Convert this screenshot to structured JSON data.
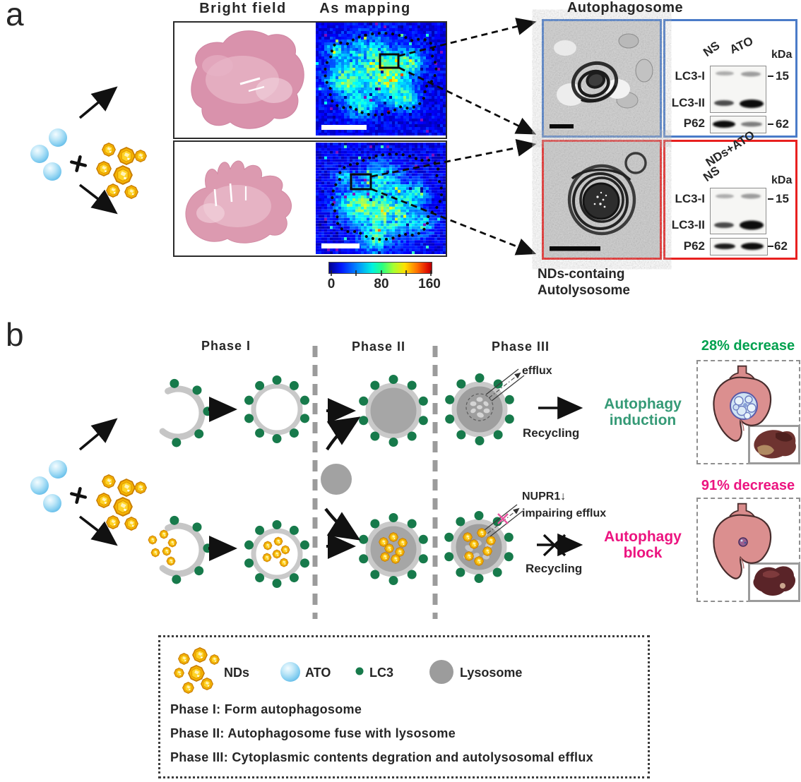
{
  "panel_a": {
    "label": "a",
    "headers": {
      "bright_field": "Bright field",
      "as_mapping": "As mapping"
    },
    "colorbar": {
      "tick0": "0",
      "tick80": "80",
      "tick160": "160"
    },
    "autophagosome_title": "Autophagosome",
    "blot_top": {
      "lane1": "NS",
      "lane2": "ATO",
      "unit": "kDa",
      "row1": "LC3-I",
      "row2": "LC3-II",
      "row3": "P62",
      "marker1": "15",
      "marker2": "62"
    },
    "blot_bottom": {
      "lane1": "NS",
      "lane2": "NDs+ATO",
      "unit": "kDa",
      "row1": "LC3-I",
      "row2": "LC3-II",
      "row3": "P62",
      "marker1": "15",
      "marker2": "62"
    },
    "caption": {
      "line1": "NDs-containg",
      "line2": "Autolysosome"
    }
  },
  "panel_b": {
    "label": "b",
    "phase1": "Phase I",
    "phase2": "Phase II",
    "phase3": "Phase III",
    "top_row": {
      "efflux_label": "efflux",
      "recycling_label": "Recycling",
      "outcome_line1": "Autophagy",
      "outcome_line2": "induction",
      "decrease_label": "28% decrease"
    },
    "bottom_row": {
      "nupr1_label": "NUPR1",
      "nupr1_arrow": "↓",
      "impairing_label": "impairing efflux",
      "recycling_label": "Recycling",
      "outcome_line1": "Autophagy",
      "outcome_line2": "block",
      "decrease_label": "91% decrease"
    },
    "legend": {
      "nds_label": "NDs",
      "ato_label": "ATO",
      "lc3_label": "LC3",
      "lysosome_label": "Lysosome",
      "line1": "Phase I: Form autophagosome",
      "line2": "Phase II: Autophagosome fuse with lysosome",
      "line3": "Phase III: Cytoplasmic contents degration and autolysosomal efflux"
    }
  },
  "colors": {
    "green": "#00a14e",
    "teal": "#359a76",
    "magenta": "#ec1480",
    "blue": "#4a7bc8",
    "red": "#e8201f",
    "lc3": "#177a4b",
    "sep": "#9b9b9b"
  }
}
